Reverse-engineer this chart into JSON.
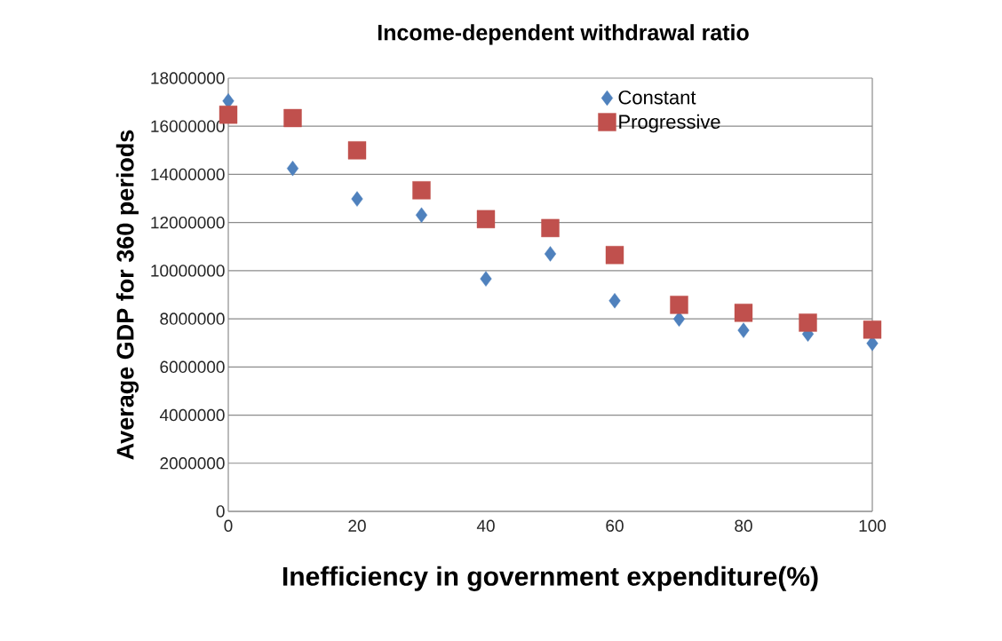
{
  "chart_data": {
    "type": "scatter",
    "title": "Income-dependent withdrawal ratio",
    "xlabel": "Inefficiency in government expenditure(%)",
    "ylabel": "Average GDP for 360 periods",
    "x": [
      0,
      10,
      20,
      30,
      40,
      50,
      60,
      70,
      80,
      90,
      100
    ],
    "series": [
      {
        "name": "Constant",
        "color": "#4f81bd",
        "marker": "diamond",
        "values": [
          17050000,
          14250000,
          12980000,
          12310000,
          9660000,
          10700000,
          8750000,
          7990000,
          7520000,
          7370000,
          6980000
        ]
      },
      {
        "name": "Progressive",
        "color": "#c0504d",
        "marker": "square",
        "values": [
          16480000,
          16340000,
          15000000,
          13340000,
          12140000,
          11770000,
          10650000,
          8580000,
          8250000,
          7840000,
          7550000
        ]
      }
    ],
    "xlim": [
      0,
      100
    ],
    "ylim": [
      0,
      18000000
    ],
    "xticks": [
      0,
      20,
      40,
      60,
      80,
      100
    ],
    "yticks": [
      0,
      2000000,
      4000000,
      6000000,
      8000000,
      10000000,
      12000000,
      14000000,
      16000000,
      18000000
    ],
    "grid": "y",
    "legend": "top right"
  }
}
